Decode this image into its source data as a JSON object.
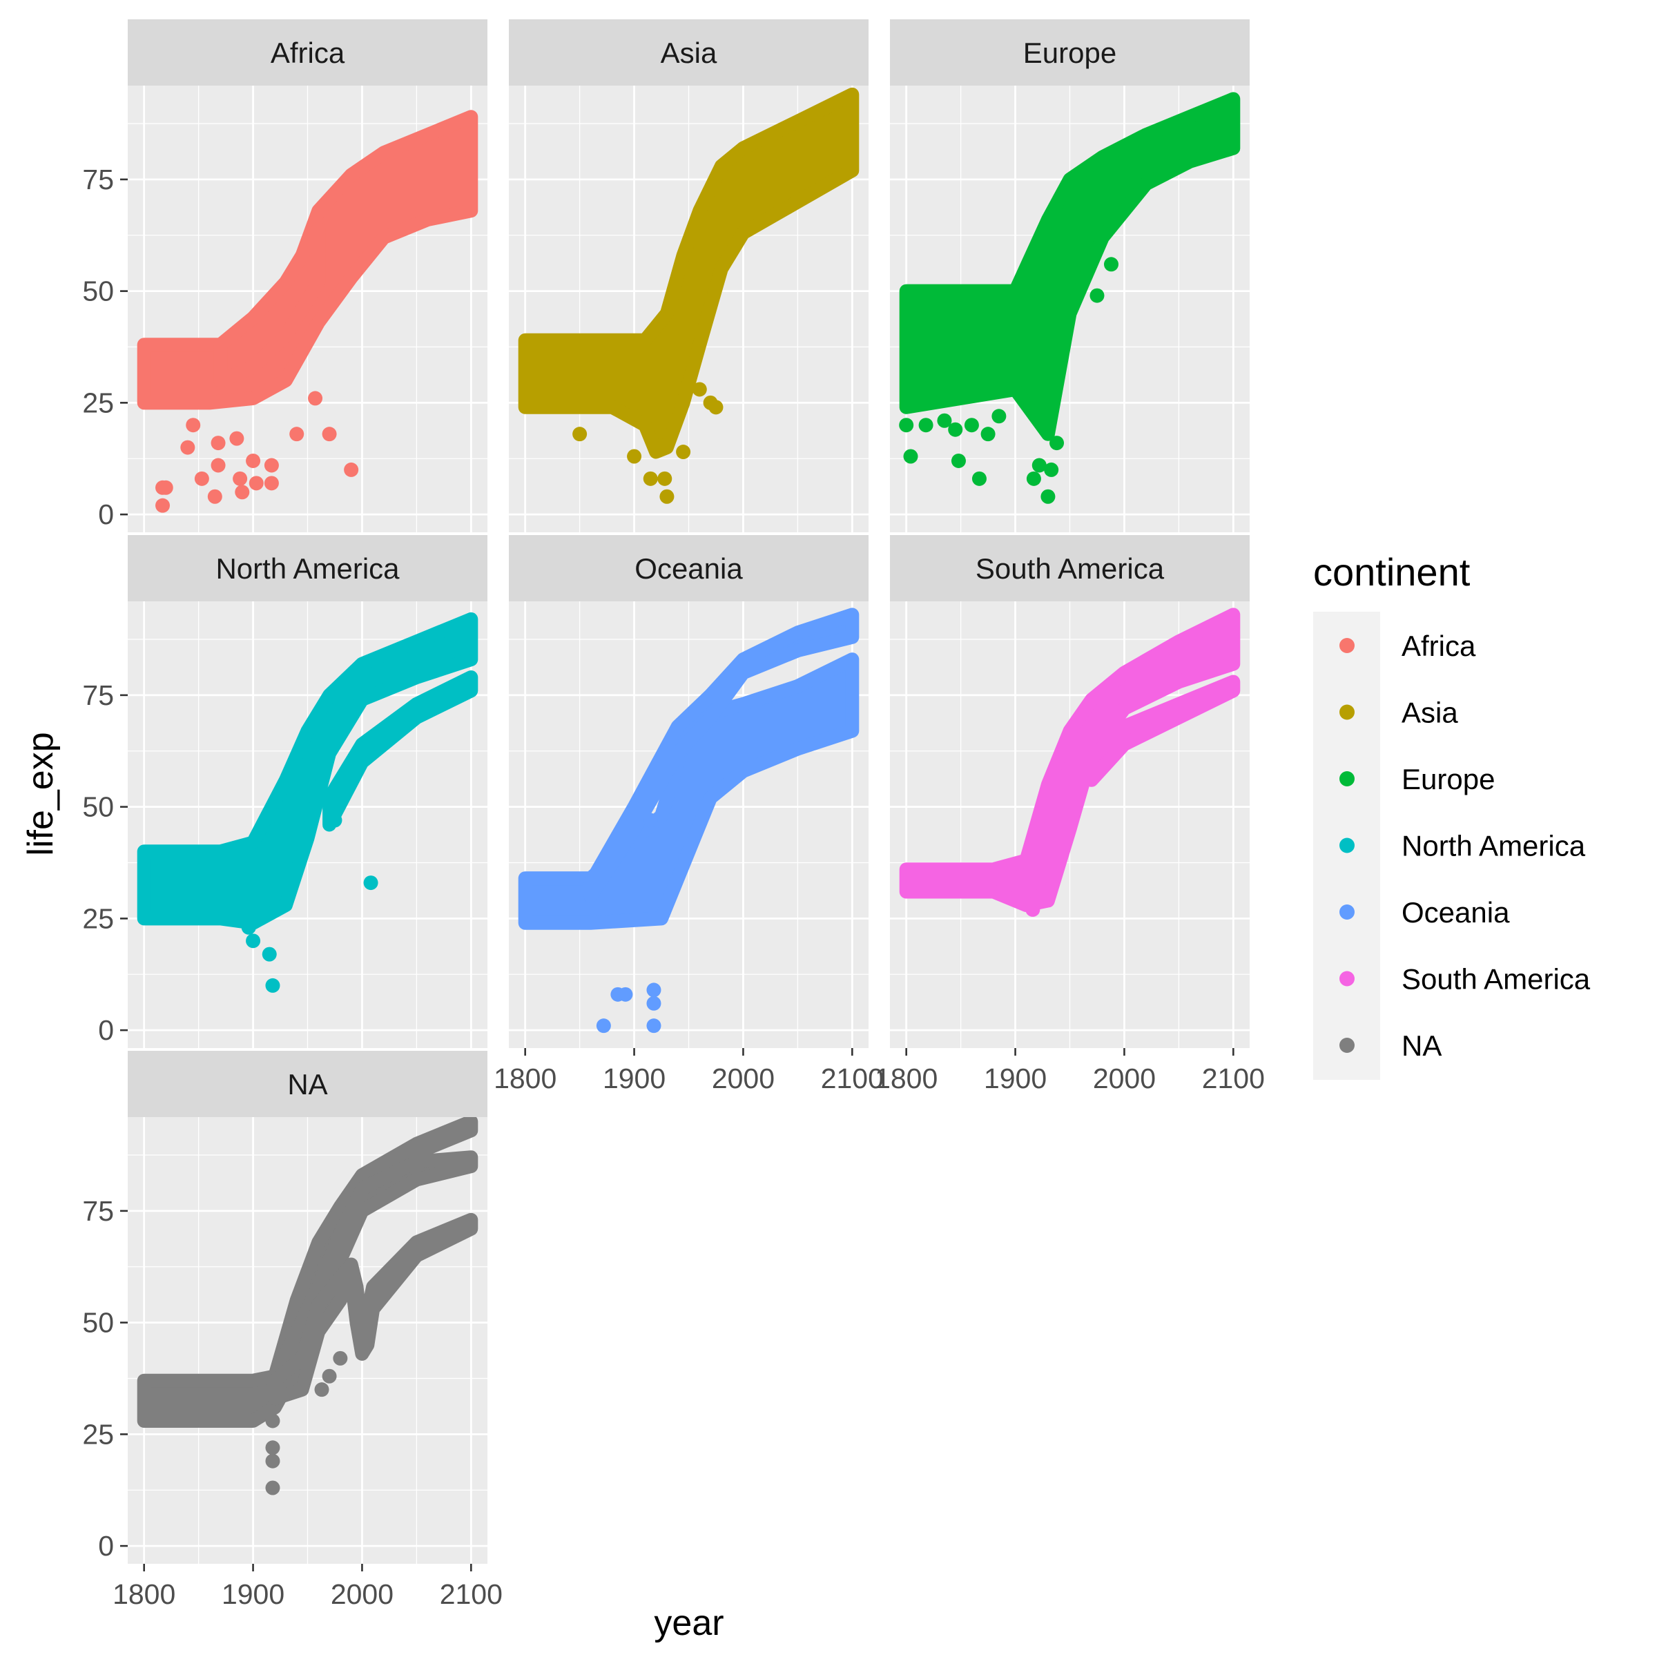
{
  "chart_data": {
    "type": "scatter",
    "facet_by": "continent",
    "x_label": "year",
    "y_label": "life_exp",
    "x_ticks": [
      1800,
      1900,
      2000,
      2100
    ],
    "y_ticks": [
      0,
      25,
      50,
      75
    ],
    "xlim": [
      1785,
      2115
    ],
    "ylim": [
      -4,
      96
    ],
    "legend": {
      "title": "continent",
      "position": "right"
    },
    "series": [
      {
        "name": "Africa",
        "color": "#F8766D",
        "bands": [
          {
            "x": [
              1800,
              1860,
              1900,
              1930,
              1960,
              1990,
              2020,
              2060,
              2100
            ],
            "lo": [
              25,
              25,
              26,
              30,
              43,
              53,
              62,
              66,
              68
            ],
            "hi": [
              38,
              38,
              38,
              48,
              68,
              76,
              81,
              85,
              89
            ]
          },
          {
            "x": [
              1870,
              1900,
              1930,
              1960
            ],
            "lo": [
              30,
              33,
              40,
              52
            ],
            "hi": [
              38,
              44,
              52,
              64
            ]
          }
        ],
        "points": [
          [
            1817,
            6
          ],
          [
            1817,
            2
          ],
          [
            1820,
            6
          ],
          [
            1853,
            8
          ],
          [
            1865,
            4
          ],
          [
            1868,
            16
          ],
          [
            1868,
            11
          ],
          [
            1885,
            17
          ],
          [
            1888,
            8
          ],
          [
            1890,
            5
          ],
          [
            1900,
            12
          ],
          [
            1903,
            7
          ],
          [
            1906,
            27
          ],
          [
            1917,
            11
          ],
          [
            1917,
            7
          ],
          [
            1840,
            15
          ],
          [
            1845,
            20
          ],
          [
            1940,
            18
          ],
          [
            1957,
            26
          ],
          [
            1970,
            18
          ],
          [
            1990,
            10
          ]
        ]
      },
      {
        "name": "Asia",
        "color": "#B79F00",
        "bands": [
          {
            "x": [
              1800,
              1880,
              1910,
              1920,
              1930,
              1945,
              1960,
              1980,
              2000,
              2050,
              2100
            ],
            "lo": [
              24,
              24,
              20,
              14,
              15,
              25,
              38,
              55,
              63,
              70,
              77
            ],
            "hi": [
              39,
              39,
              39,
              42,
              45,
              58,
              68,
              78,
              82,
              88,
              94
            ]
          }
        ],
        "points": [
          [
            1850,
            18
          ],
          [
            1900,
            13
          ],
          [
            1915,
            8
          ],
          [
            1928,
            8
          ],
          [
            1930,
            4
          ],
          [
            1945,
            14
          ],
          [
            1960,
            28
          ],
          [
            1970,
            25
          ],
          [
            1975,
            24
          ],
          [
            1900,
            22
          ]
        ]
      },
      {
        "name": "Europe",
        "color": "#00BA38",
        "bands": [
          {
            "x": [
              1800,
              1850,
              1900,
              1930,
              1950,
              1980,
              2020,
              2060,
              2100
            ],
            "lo": [
              24,
              26,
              28,
              18,
              45,
              62,
              74,
              79,
              82
            ],
            "hi": [
              50,
              50,
              50,
              66,
              75,
              80,
              85,
              89,
              93
            ]
          }
        ],
        "points": [
          [
            1800,
            20
          ],
          [
            1804,
            13
          ],
          [
            1818,
            20
          ],
          [
            1835,
            21
          ],
          [
            1845,
            19
          ],
          [
            1848,
            12
          ],
          [
            1860,
            20
          ],
          [
            1867,
            8
          ],
          [
            1875,
            18
          ],
          [
            1885,
            22
          ],
          [
            1917,
            8
          ],
          [
            1922,
            11
          ],
          [
            1930,
            4
          ],
          [
            1933,
            10
          ],
          [
            1938,
            16
          ],
          [
            1975,
            49
          ],
          [
            1988,
            56
          ]
        ]
      },
      {
        "name": "North America",
        "color": "#00BFC4",
        "bands": [
          {
            "x": [
              1800,
              1870,
              1900,
              1930,
              1950,
              1970,
              2000,
              2050,
              2100
            ],
            "lo": [
              25,
              25,
              24,
              28,
              43,
              62,
              74,
              79,
              83
            ],
            "hi": [
              40,
              40,
              42,
              56,
              67,
              75,
              82,
              87,
              92
            ]
          },
          {
            "x": [
              1970,
              2000,
              2050,
              2100
            ],
            "lo": [
              46,
              60,
              70,
              76
            ],
            "hi": [
              52,
              64,
              73,
              79
            ]
          }
        ],
        "points": [
          [
            1896,
            23
          ],
          [
            1900,
            20
          ],
          [
            1915,
            17
          ],
          [
            1918,
            10
          ],
          [
            1920,
            48
          ],
          [
            2008,
            33
          ],
          [
            1975,
            47
          ]
        ]
      },
      {
        "name": "Oceania",
        "color": "#619CFF",
        "bands": [
          {
            "x": [
              1800,
              1860,
              1925,
              1950,
              1970,
              2000,
              2050,
              2100
            ],
            "lo": [
              24,
              24,
              25,
              40,
              52,
              58,
              63,
              67
            ],
            "hi": [
              34,
              34,
              48,
              68,
              71,
              73,
              77,
              83
            ]
          },
          {
            "x": [
              1860,
              1900,
              1940,
              1970,
              2000,
              2050,
              2100
            ],
            "lo": [
              30,
              45,
              62,
              70,
              80,
              85,
              88
            ],
            "hi": [
              33,
              50,
              68,
              75,
              83,
              89,
              93
            ]
          }
        ],
        "points": [
          [
            1872,
            1
          ],
          [
            1885,
            8
          ],
          [
            1892,
            8
          ],
          [
            1915,
            47
          ],
          [
            1918,
            9
          ],
          [
            1918,
            6
          ],
          [
            1918,
            1
          ]
        ]
      },
      {
        "name": "South America",
        "color": "#F564E3",
        "bands": [
          {
            "x": [
              1800,
              1880,
              1910,
              1930,
              1950,
              1970,
              2000,
              2050,
              2100
            ],
            "lo": [
              31,
              31,
              28,
              29,
              45,
              62,
              72,
              78,
              82
            ],
            "hi": [
              36,
              36,
              38,
              55,
              67,
              74,
              80,
              87,
              93
            ]
          },
          {
            "x": [
              1970,
              2000,
              2050,
              2100
            ],
            "lo": [
              56,
              64,
              70,
              76
            ],
            "hi": [
              61,
              68,
              73,
              78
            ]
          }
        ],
        "points": [
          [
            1916,
            27
          ],
          [
            1922,
            30
          ]
        ]
      },
      {
        "name": "NA",
        "color": "#7F7F7F",
        "bands": [
          {
            "x": [
              1800,
              1900,
              1920,
              1940,
              1960,
              1980,
              2000,
              2050,
              2100
            ],
            "lo": [
              28,
              28,
              31,
              40,
              58,
              70,
              80,
              88,
              93
            ],
            "hi": [
              37,
              37,
              38,
              55,
              68,
              76,
              83,
              90,
              95
            ]
          },
          {
            "x": [
              1920,
              1960,
              1980,
              2000,
              2050,
              2100
            ],
            "lo": [
              33,
              50,
              64,
              75,
              82,
              85
            ],
            "hi": [
              38,
              58,
              70,
              80,
              86,
              87
            ]
          },
          {
            "x": [
              1920,
              1945,
              1960,
              1980,
              1990,
              1995,
              2000,
              2005,
              2010,
              2050,
              2100
            ],
            "lo": [
              33,
              35,
              48,
              55,
              60,
              50,
              43,
              45,
              53,
              65,
              71
            ],
            "hi": [
              37,
              42,
              54,
              60,
              63,
              58,
              48,
              52,
              58,
              68,
              73
            ]
          }
        ],
        "points": [
          [
            1918,
            13
          ],
          [
            1918,
            19
          ],
          [
            1918,
            22
          ],
          [
            1918,
            28
          ],
          [
            1963,
            35
          ],
          [
            1970,
            38
          ],
          [
            1980,
            42
          ]
        ]
      }
    ]
  }
}
